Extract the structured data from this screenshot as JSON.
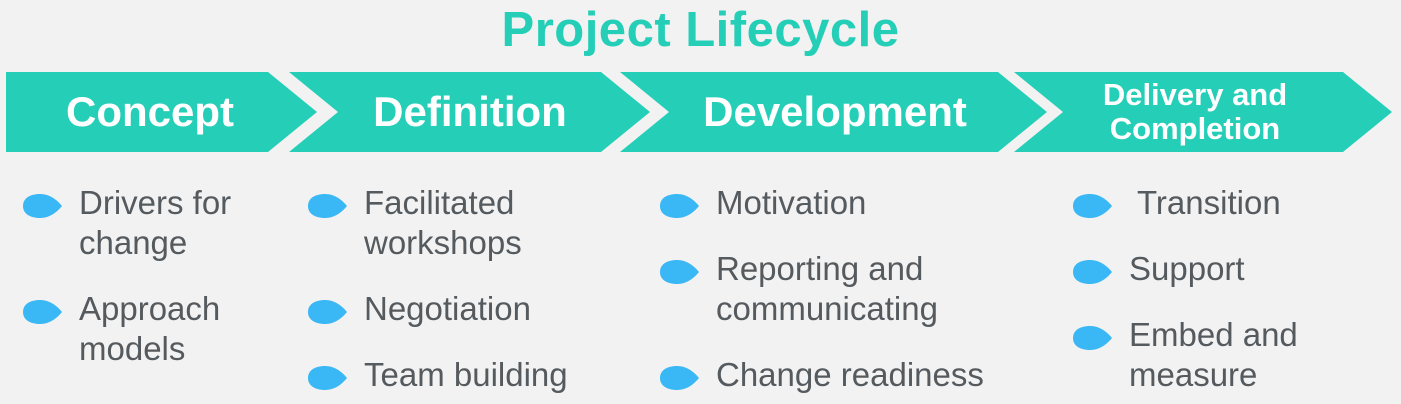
{
  "title": "Project Lifecycle",
  "colors": {
    "accent": "#25cfb7",
    "bullet": "#3ab7f5",
    "text": "#555a5e",
    "background": "#f2f2f2"
  },
  "stages": [
    {
      "label": "Concept",
      "items": [
        "Drivers for change",
        "Approach models"
      ]
    },
    {
      "label": "Definition",
      "items": [
        "Facilitated workshops",
        "Negotiation",
        "Team building"
      ]
    },
    {
      "label": "Development",
      "items": [
        "Motivation",
        "Reporting and communicating",
        "Change readiness"
      ]
    },
    {
      "label": "Delivery and Completion",
      "items": [
        "Transition",
        "Support",
        "Embed and measure"
      ]
    }
  ]
}
